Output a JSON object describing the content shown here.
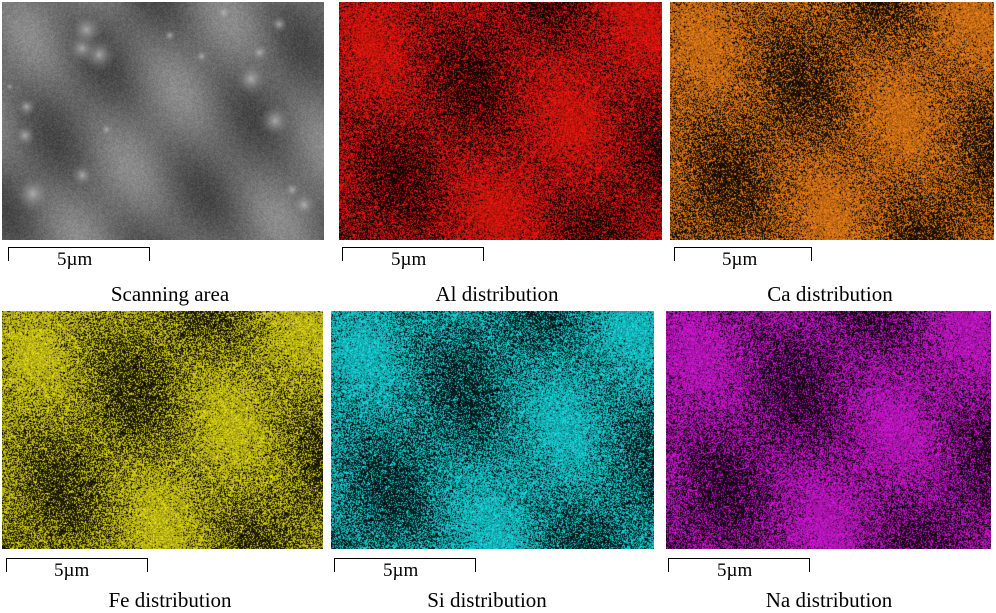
{
  "panels": [
    {
      "caption": "Scanning area",
      "scale_label": "5µm",
      "color": "#7a7a7a",
      "kind": "sem"
    },
    {
      "caption": "Al distribution",
      "scale_label": "5µm",
      "color": "#ff1a10",
      "kind": "map"
    },
    {
      "caption": "Ca distribution",
      "scale_label": "5µm",
      "color": "#ff8a1a",
      "kind": "map"
    },
    {
      "caption": "Fe distribution",
      "scale_label": "5µm",
      "color": "#f0e81a",
      "kind": "map"
    },
    {
      "caption": "Si distribution",
      "scale_label": "5µm",
      "color": "#1ae8ee",
      "kind": "map"
    },
    {
      "caption": "Na distribution",
      "scale_label": "5µm",
      "color": "#e21ae6",
      "kind": "map"
    }
  ]
}
